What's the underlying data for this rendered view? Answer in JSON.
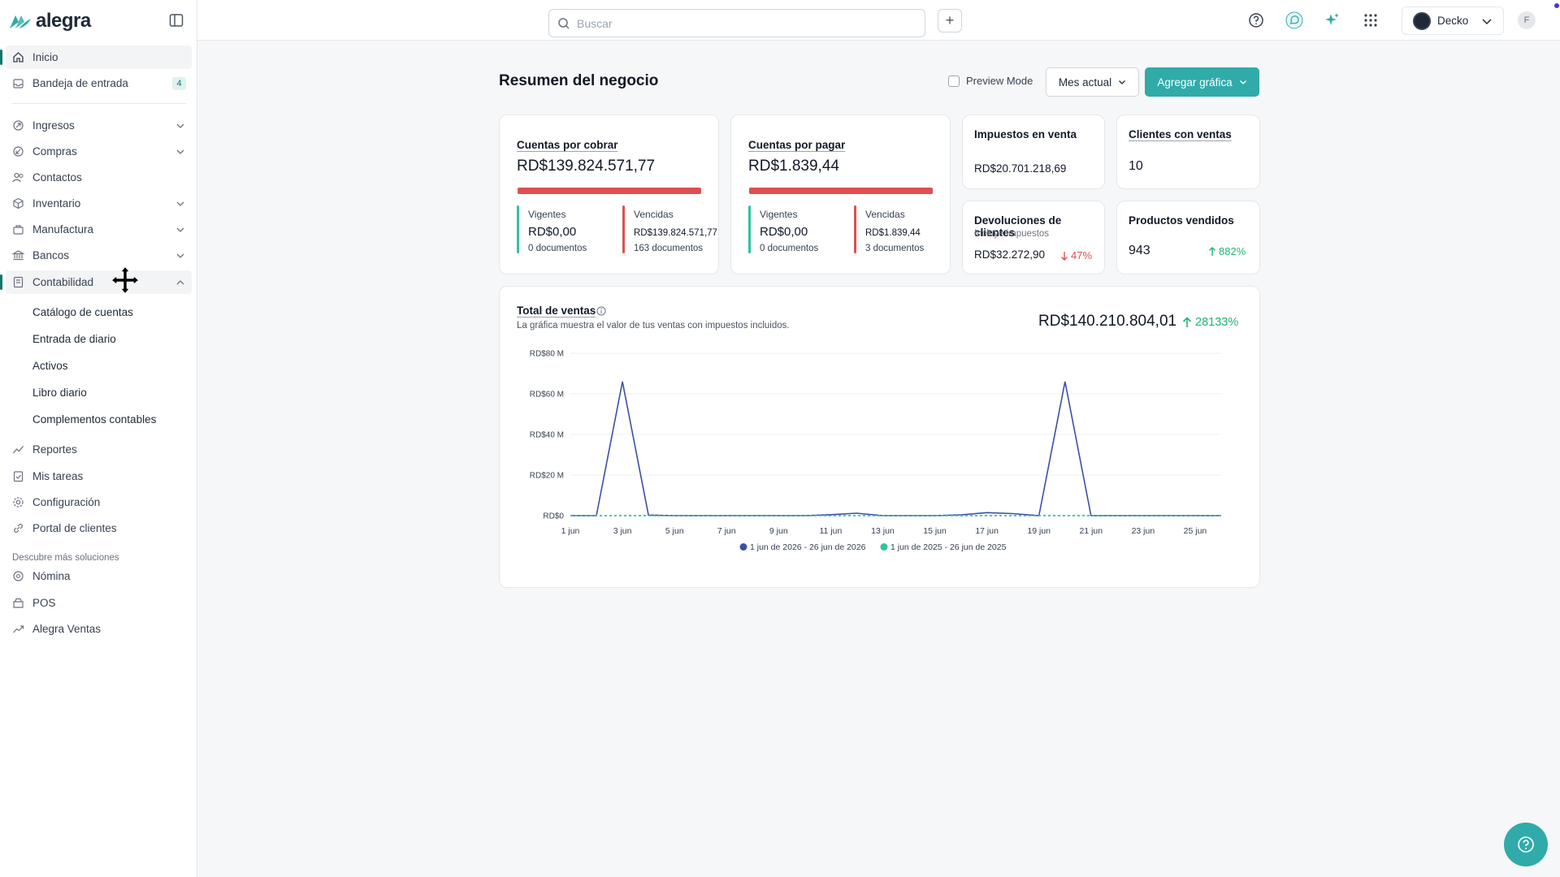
{
  "app": {
    "brand": "alegra",
    "accent": "#30aba9"
  },
  "sidebar": {
    "items": [
      {
        "label": "Inicio",
        "icon": "home-icon"
      },
      {
        "label": "Bandeja de entrada",
        "icon": "inbox-icon",
        "badge": "4"
      },
      {
        "label": "Ingresos",
        "icon": "income-icon"
      },
      {
        "label": "Compras",
        "icon": "purchases-icon"
      },
      {
        "label": "Contactos",
        "icon": "contacts-icon"
      },
      {
        "label": "Inventario",
        "icon": "inventory-icon"
      },
      {
        "label": "Manufactura",
        "icon": "manufacturing-icon"
      },
      {
        "label": "Bancos",
        "icon": "bank-icon"
      },
      {
        "label": "Contabilidad",
        "icon": "accounting-icon"
      }
    ],
    "contabilidad_sub": [
      "Catálogo de cuentas",
      "Entrada de diario",
      "Activos",
      "Libro diario",
      "Complementos contables"
    ],
    "bottom_items": [
      {
        "label": "Reportes",
        "icon": "reports-icon"
      },
      {
        "label": "Mis tareas",
        "icon": "tasks-icon"
      },
      {
        "label": "Configuración",
        "icon": "settings-icon"
      },
      {
        "label": "Portal de clientes",
        "icon": "link-icon"
      }
    ],
    "section_title": "Descubre más soluciones",
    "solutions": [
      {
        "label": "Nómina",
        "icon": "payroll-icon"
      },
      {
        "label": "POS",
        "icon": "pos-icon"
      },
      {
        "label": "Alegra Ventas",
        "icon": "sales-icon"
      }
    ]
  },
  "topbar": {
    "search_placeholder": "Buscar",
    "plus": "+",
    "company": "Decko",
    "user_initial": "F"
  },
  "main": {
    "title": "Resumen del negocio",
    "preview_mode": "Preview Mode",
    "period_button": "Mes actual",
    "add_chart_button": "Agregar gráfica"
  },
  "cards": {
    "cobrar": {
      "title": "Cuentas por cobrar",
      "amount": "RD$139.824.571,77",
      "vigentes_label": "Vigentes",
      "vigentes_value": "RD$0,00",
      "vigentes_docs": "0 documentos",
      "vencidas_label": "Vencidas",
      "vencidas_value": "RD$139.824.571,77",
      "vencidas_docs": "163 documentos"
    },
    "pagar": {
      "title": "Cuentas por pagar",
      "amount": "RD$1.839,44",
      "vigentes_label": "Vigentes",
      "vigentes_value": "RD$0,00",
      "vigentes_docs": "0 documentos",
      "vencidas_label": "Vencidas",
      "vencidas_value": "RD$1.839,44",
      "vencidas_docs": "3 documentos"
    },
    "impuestos": {
      "title": "Impuestos en venta",
      "value": "RD$20.701.218,69"
    },
    "clientes": {
      "title": "Clientes con ventas",
      "value": "10"
    },
    "devoluciones": {
      "title": "Devoluciones de clientes",
      "subtitle": "Incluye impuestos",
      "value": "RD$32.272,90",
      "trend": "47%",
      "trend_color": "#e04f4f"
    },
    "productos": {
      "title": "Productos vendidos",
      "value": "943",
      "trend": "882%",
      "trend_color": "#22b573"
    }
  },
  "sales_chart": {
    "title": "Total de ventas",
    "description": "La gráfica muestra el valor de tus ventas con impuestos incluidos.",
    "total": "RD$140.210.804,01",
    "growth": "28133%"
  },
  "chart_data": {
    "type": "line",
    "y_ticks": [
      "RD$0",
      "RD$20 M",
      "RD$40 M",
      "RD$60 M",
      "RD$80 M"
    ],
    "ylim": [
      0,
      80
    ],
    "x_tick_labels": [
      "1 jun",
      "3 jun",
      "5 jun",
      "7 jun",
      "9 jun",
      "11 jun",
      "13 jun",
      "15 jun",
      "17 jun",
      "19 jun",
      "21 jun",
      "23 jun",
      "25 jun"
    ],
    "x": [
      1,
      2,
      3,
      4,
      5,
      6,
      7,
      8,
      9,
      10,
      11,
      12,
      13,
      14,
      15,
      16,
      17,
      18,
      19,
      20,
      21,
      22,
      23,
      24,
      25,
      26
    ],
    "series": [
      {
        "name": "1 jun de 2026 - 26 jun de 2026",
        "color": "#3b4fa8",
        "values": [
          0,
          0,
          66,
          0.3,
          0,
          0,
          0,
          0,
          0,
          0,
          0.5,
          1.2,
          0,
          0,
          0,
          0.4,
          1.5,
          1,
          0,
          66,
          0,
          0,
          0,
          0,
          0,
          0
        ]
      },
      {
        "name": "1 jun de 2025 - 26 jun de 2025",
        "color": "#2ec4a0",
        "values": [
          0,
          0,
          0,
          0,
          0,
          0,
          0,
          0,
          0,
          0,
          0,
          0,
          0,
          0,
          0,
          0,
          0,
          0,
          0,
          0,
          0,
          0,
          0,
          0,
          0,
          0
        ]
      }
    ]
  }
}
